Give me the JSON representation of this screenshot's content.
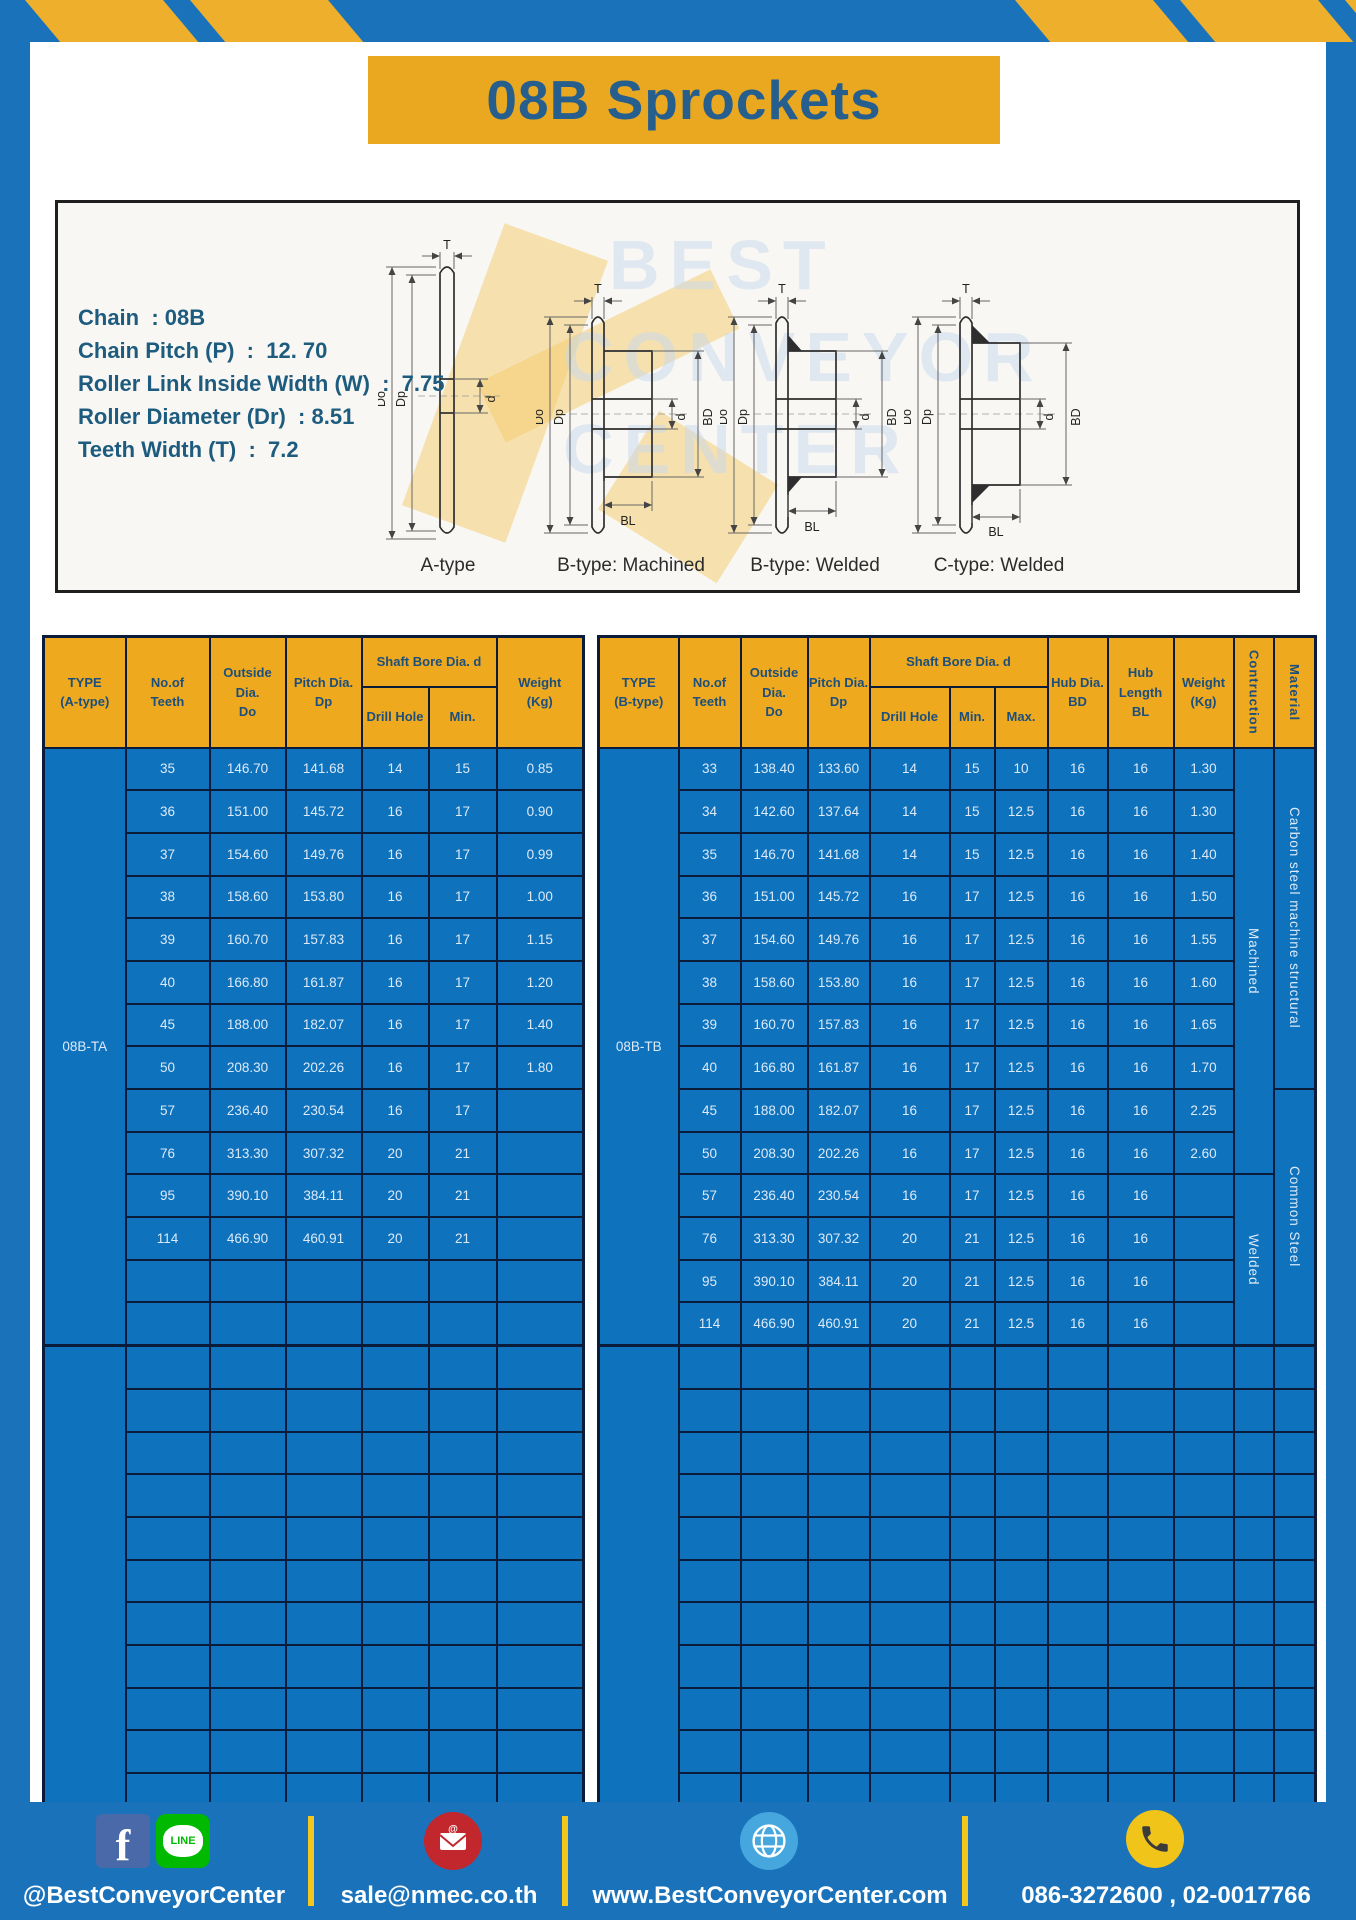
{
  "title": "08B Sprockets",
  "colors": {
    "frame_blue": "#1a73ba",
    "stripe_yellow": "#eeb02c",
    "banner_yellow": "#eaa821",
    "title_text": "#265e8d",
    "spec_text": "#1e5c7f",
    "table_header_yellow": "#efa91f",
    "table_header_text": "#1c4f7c",
    "table_cell_blue": "#0e72bd",
    "table_border_navy": "#0a1c3a",
    "divider_yellow": "#f3c71c",
    "facebook_blue": "#4a69a8",
    "line_green": "#00b900",
    "mail_red": "#c1272d",
    "globe_blue": "#45a7dd",
    "phone_yellow": "#f0c419"
  },
  "specs": {
    "lines": [
      "Chain  : 08B",
      "Chain Pitch (P)  :  12. 70",
      "Roller Link Inside Width (W)  :  7.75",
      "Roller Diameter (Dr)  : 8.51",
      "Teeth Width (T)  :  7.2"
    ]
  },
  "diagram": {
    "watermark": [
      "BEST",
      "CONVEYOR",
      "CENTER"
    ],
    "captions": [
      "A-type",
      "B-type: Machined",
      "B-type: Welded",
      "C-type: Welded"
    ],
    "dims": {
      "t": "T",
      "do": "Do",
      "dp": "Dp",
      "d": "d",
      "bd": "BD",
      "bl": "BL"
    }
  },
  "table_a": {
    "header": {
      "type": "TYPE\n(A-type)",
      "teeth": "No.of\nTeeth",
      "outside": "Outside\nDia.\nDo",
      "pitch": "Pitch Dia.\nDp",
      "shaft": "Shaft Bore Dia. d",
      "drill": "Drill Hole",
      "min": "Min.",
      "weight": "Weight\n(Kg)"
    },
    "type_label": "08B-TA",
    "rows": [
      [
        "35",
        "146.70",
        "141.68",
        "14",
        "15",
        "0.85"
      ],
      [
        "36",
        "151.00",
        "145.72",
        "16",
        "17",
        "0.90"
      ],
      [
        "37",
        "154.60",
        "149.76",
        "16",
        "17",
        "0.99"
      ],
      [
        "38",
        "158.60",
        "153.80",
        "16",
        "17",
        "1.00"
      ],
      [
        "39",
        "160.70",
        "157.83",
        "16",
        "17",
        "1.15"
      ],
      [
        "40",
        "166.80",
        "161.87",
        "16",
        "17",
        "1.20"
      ],
      [
        "45",
        "188.00",
        "182.07",
        "16",
        "17",
        "1.40"
      ],
      [
        "50",
        "208.30",
        "202.26",
        "16",
        "17",
        "1.80"
      ],
      [
        "57",
        "236.40",
        "230.54",
        "16",
        "17",
        ""
      ],
      [
        "76",
        "313.30",
        "307.32",
        "20",
        "21",
        ""
      ],
      [
        "95",
        "390.10",
        "384.11",
        "20",
        "21",
        ""
      ],
      [
        "114",
        "466.90",
        "460.91",
        "20",
        "21",
        ""
      ]
    ],
    "block1_extra_empty": 2,
    "block2_rows": 11
  },
  "table_b": {
    "header": {
      "type": "TYPE\n(B-type)",
      "teeth": "No.of\nTeeth",
      "outside": "Outside\nDia.\nDo",
      "pitch": "Pitch Dia.\nDp",
      "shaft": "Shaft Bore Dia. d",
      "drill": "Drill Hole",
      "min": "Min.",
      "max": "Max.",
      "hub_dia": "Hub Dia.\nBD",
      "hub_len": "Hub\nLength\nBL",
      "weight": "Weight\n(Kg)",
      "construction": "Contruction",
      "material": "Material"
    },
    "type_label": "08B-TB",
    "rows": [
      [
        "33",
        "138.40",
        "133.60",
        "14",
        "15",
        "10",
        "16",
        "16",
        "1.30"
      ],
      [
        "34",
        "142.60",
        "137.64",
        "14",
        "15",
        "12.5",
        "16",
        "16",
        "1.30"
      ],
      [
        "35",
        "146.70",
        "141.68",
        "14",
        "15",
        "12.5",
        "16",
        "16",
        "1.40"
      ],
      [
        "36",
        "151.00",
        "145.72",
        "16",
        "17",
        "12.5",
        "16",
        "16",
        "1.50"
      ],
      [
        "37",
        "154.60",
        "149.76",
        "16",
        "17",
        "12.5",
        "16",
        "16",
        "1.55"
      ],
      [
        "38",
        "158.60",
        "153.80",
        "16",
        "17",
        "12.5",
        "16",
        "16",
        "1.60"
      ],
      [
        "39",
        "160.70",
        "157.83",
        "16",
        "17",
        "12.5",
        "16",
        "16",
        "1.65"
      ],
      [
        "40",
        "166.80",
        "161.87",
        "16",
        "17",
        "12.5",
        "16",
        "16",
        "1.70"
      ],
      [
        "45",
        "188.00",
        "182.07",
        "16",
        "17",
        "12.5",
        "16",
        "16",
        "2.25"
      ],
      [
        "50",
        "208.30",
        "202.26",
        "16",
        "17",
        "12.5",
        "16",
        "16",
        "2.60"
      ],
      [
        "57",
        "236.40",
        "230.54",
        "16",
        "17",
        "12.5",
        "16",
        "16",
        ""
      ],
      [
        "76",
        "313.30",
        "307.32",
        "20",
        "21",
        "12.5",
        "16",
        "16",
        ""
      ],
      [
        "95",
        "390.10",
        "384.11",
        "20",
        "21",
        "12.5",
        "16",
        "16",
        ""
      ],
      [
        "114",
        "466.90",
        "460.91",
        "20",
        "21",
        "12.5",
        "16",
        "16",
        ""
      ]
    ],
    "construction_spans": [
      {
        "label": "Machined",
        "span": 10
      },
      {
        "label": "Welded",
        "span": 4
      }
    ],
    "material_spans": [
      {
        "label": "Carbon steel  machine  structural",
        "span": 8
      },
      {
        "label": "Common  Steel",
        "span": 6
      }
    ],
    "block1_extra_empty": 0,
    "block2_rows": 11
  },
  "footer": {
    "items": [
      {
        "label": "@BestConveyorCenter"
      },
      {
        "label": "sale@nmec.co.th"
      },
      {
        "label": "www.BestConveyorCenter.com"
      },
      {
        "label": "086-3272600 , 02-0017766"
      }
    ],
    "facebook_glyph": "f",
    "line_label": "LINE",
    "mail_at": "@"
  }
}
